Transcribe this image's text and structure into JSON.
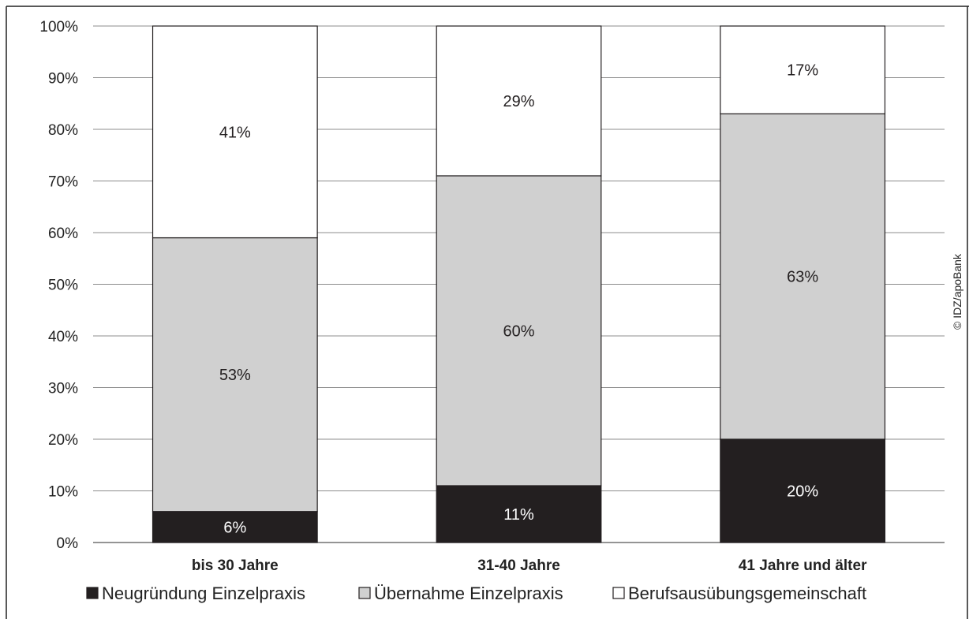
{
  "chart_data": {
    "type": "bar",
    "stacked": true,
    "categories": [
      "bis 30 Jahre",
      "31-40 Jahre",
      "41 Jahre und älter"
    ],
    "series": [
      {
        "name": "Neugründung Einzelpraxis",
        "values": [
          6,
          11,
          20
        ],
        "labels": [
          "6%",
          "11%",
          "20%"
        ],
        "color": "#231f20",
        "label_color": "#ffffff"
      },
      {
        "name": "Übernahme Einzelpraxis",
        "values": [
          53,
          60,
          63
        ],
        "labels": [
          "53%",
          "60%",
          "63%"
        ],
        "color": "#d0d0d0",
        "label_color": "#231f20"
      },
      {
        "name": "Berufsausübungsgemeinschaft",
        "values": [
          41,
          29,
          17
        ],
        "labels": [
          "41%",
          "29%",
          "17%"
        ],
        "color": "#ffffff",
        "label_color": "#231f20"
      }
    ],
    "yticks": [
      "0%",
      "10%",
      "20%",
      "30%",
      "40%",
      "50%",
      "60%",
      "70%",
      "80%",
      "90%",
      "100%"
    ],
    "ylim": [
      0,
      100
    ],
    "grid": true,
    "legend_position": "bottom",
    "title": "",
    "xlabel": "",
    "ylabel": ""
  },
  "credit": "© IDZ/apoBank"
}
